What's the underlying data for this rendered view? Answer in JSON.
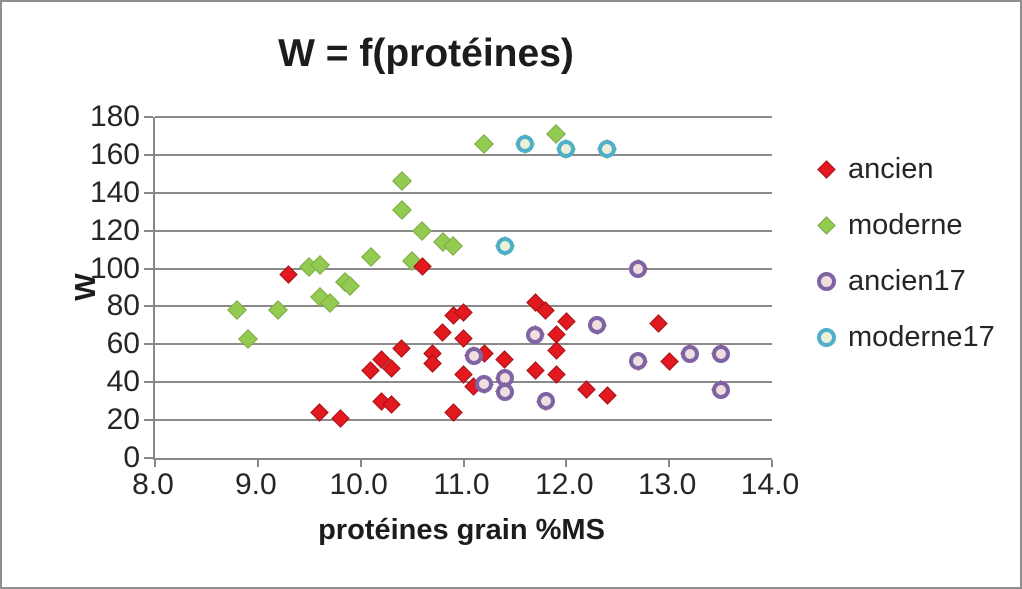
{
  "chart_data": {
    "type": "scatter",
    "title": "W = f(protéines)",
    "xlabel": "protéines grain %MS",
    "ylabel": "W",
    "xlim": [
      8.0,
      14.0
    ],
    "ylim": [
      0,
      180
    ],
    "x_ticks": [
      "8.0",
      "9.0",
      "10.0",
      "11.0",
      "12.0",
      "13.0",
      "14.0"
    ],
    "y_ticks": [
      0,
      20,
      40,
      60,
      80,
      100,
      120,
      140,
      160,
      180
    ],
    "grid": "horizontal-only",
    "legend_position": "right-middle",
    "axis_color": "#888888",
    "gridline_color": "#8a8a8a",
    "series": [
      {
        "name": "ancien",
        "marker": "diamond",
        "fill": "#e2191e",
        "edge": "#a81318",
        "points": [
          [
            9.3,
            97
          ],
          [
            9.6,
            24
          ],
          [
            9.8,
            21
          ],
          [
            10.1,
            46
          ],
          [
            10.2,
            52
          ],
          [
            10.2,
            30
          ],
          [
            10.3,
            47
          ],
          [
            10.3,
            28
          ],
          [
            10.4,
            58
          ],
          [
            10.6,
            101
          ],
          [
            10.7,
            55
          ],
          [
            10.7,
            50
          ],
          [
            10.8,
            66
          ],
          [
            10.9,
            75
          ],
          [
            11.0,
            77
          ],
          [
            11.0,
            63
          ],
          [
            10.9,
            24
          ],
          [
            11.0,
            44
          ],
          [
            11.1,
            38
          ],
          [
            11.2,
            55
          ],
          [
            11.4,
            52
          ],
          [
            11.7,
            46
          ],
          [
            11.7,
            82
          ],
          [
            11.8,
            78
          ],
          [
            11.9,
            65
          ],
          [
            11.9,
            57
          ],
          [
            11.9,
            44
          ],
          [
            12.0,
            72
          ],
          [
            12.2,
            36
          ],
          [
            12.4,
            33
          ],
          [
            12.9,
            71
          ],
          [
            13.0,
            51
          ]
        ]
      },
      {
        "name": "moderne",
        "marker": "diamond",
        "fill": "#93cb50",
        "edge": "#7fa94a",
        "points": [
          [
            8.8,
            78
          ],
          [
            8.9,
            63
          ],
          [
            9.2,
            78
          ],
          [
            9.5,
            101
          ],
          [
            9.6,
            102
          ],
          [
            9.6,
            85
          ],
          [
            9.7,
            82
          ],
          [
            9.85,
            93
          ],
          [
            9.9,
            91
          ],
          [
            10.1,
            106
          ],
          [
            10.4,
            146
          ],
          [
            10.4,
            131
          ],
          [
            10.5,
            104
          ],
          [
            10.6,
            120
          ],
          [
            10.8,
            114
          ],
          [
            10.9,
            112
          ],
          [
            11.2,
            166
          ],
          [
            11.9,
            171
          ]
        ]
      },
      {
        "name": "ancien17",
        "marker": "ring-circle",
        "ring": "#7e64a5",
        "fill": "#f1dede",
        "behind_diamond": "ancien",
        "points": [
          [
            11.1,
            54
          ],
          [
            11.2,
            39
          ],
          [
            11.4,
            42
          ],
          [
            11.4,
            35
          ],
          [
            11.7,
            65
          ],
          [
            11.8,
            30
          ],
          [
            12.3,
            70
          ],
          [
            12.7,
            100
          ],
          [
            12.7,
            51
          ],
          [
            13.2,
            55
          ],
          [
            13.5,
            55
          ],
          [
            13.5,
            36
          ]
        ]
      },
      {
        "name": "moderne17",
        "marker": "ring-circle",
        "ring": "#4fafc9",
        "fill": "#ebf0d9",
        "behind_diamond": "moderne",
        "points": [
          [
            11.4,
            112
          ],
          [
            11.6,
            166
          ],
          [
            12.0,
            163
          ],
          [
            12.4,
            163
          ]
        ]
      }
    ]
  }
}
